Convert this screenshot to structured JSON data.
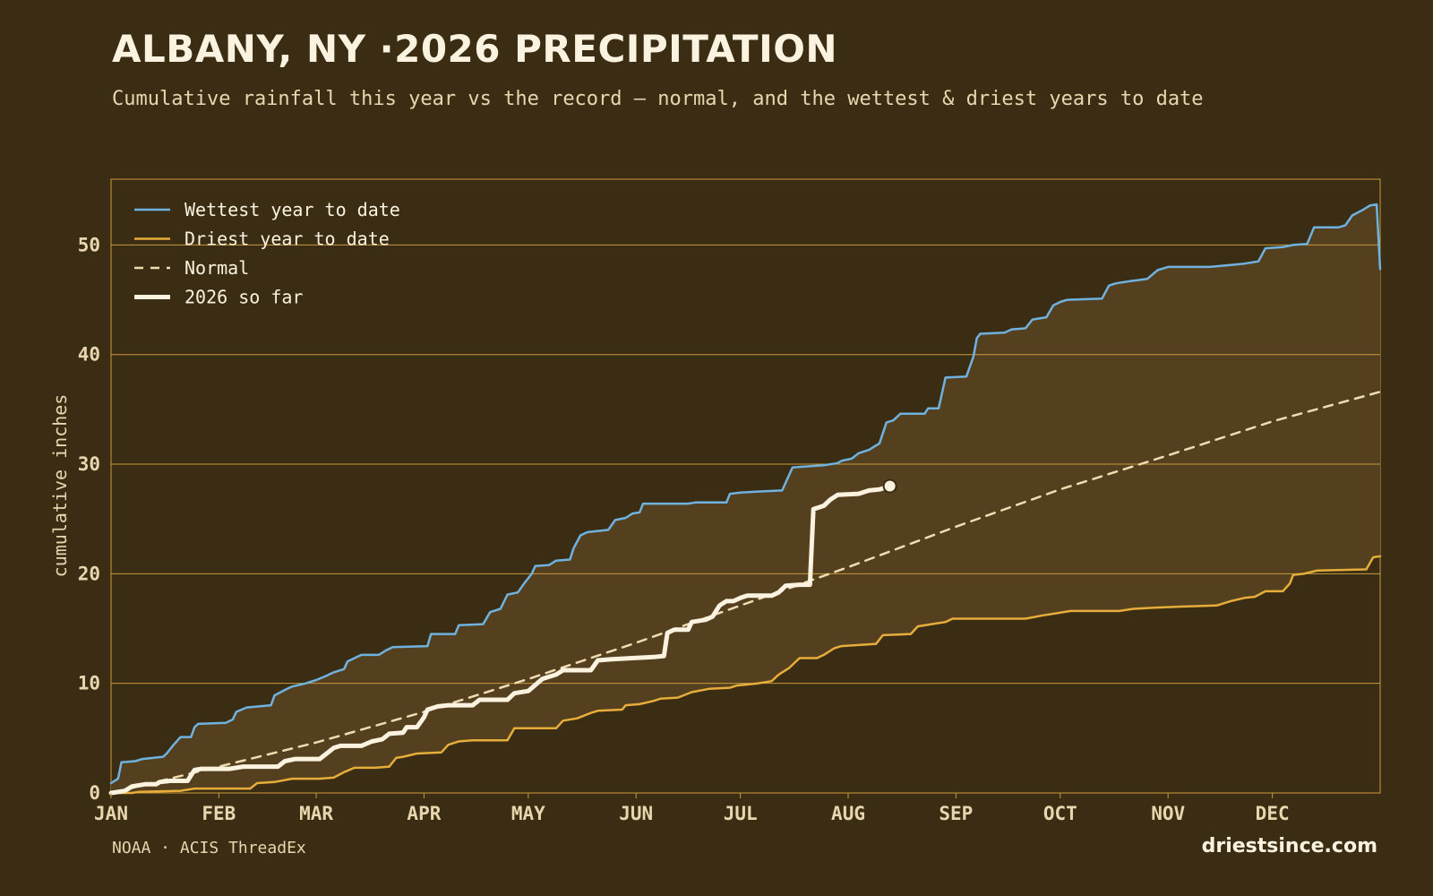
{
  "header": {
    "title": "ALBANY, NY ·2026 PRECIPITATION",
    "subtitle": "Cumulative rainfall this year vs the record — normal, and the wettest & driest years to date"
  },
  "footer": {
    "source": "NOAA · ACIS ThreadEx",
    "brand": "driestsince.com"
  },
  "colors": {
    "background": "#3a2d14",
    "band": "#54401f",
    "grid": "#c99a3a",
    "wettest": "#6fb2e0",
    "driest": "#e6ad3a",
    "normal": "#efdcb2",
    "current": "#fbf3e0"
  },
  "chart_data": {
    "type": "line",
    "ylabel": "cumulative inches",
    "ylim": [
      0,
      56
    ],
    "yticks": [
      0,
      10,
      20,
      30,
      40,
      50
    ],
    "xlim": [
      0,
      365
    ],
    "x_unit": "day of year",
    "month_labels": [
      "JAN",
      "FEB",
      "MAR",
      "APR",
      "MAY",
      "JUN",
      "JUL",
      "AUG",
      "SEP",
      "OCT",
      "NOV",
      "DEC"
    ],
    "month_starts": [
      0,
      31,
      59,
      90,
      120,
      151,
      181,
      212,
      243,
      273,
      304,
      334
    ],
    "grid": true,
    "legend_position": "top-left",
    "band": "shaded region between wettest and driest",
    "series": [
      {
        "name": "Wettest year to date",
        "points": [
          [
            0,
            0.9
          ],
          [
            2,
            1.3
          ],
          [
            3,
            2.8
          ],
          [
            7,
            2.9
          ],
          [
            9,
            3.1
          ],
          [
            15,
            3.3
          ],
          [
            16,
            3.6
          ],
          [
            18,
            4.4
          ],
          [
            20,
            5.1
          ],
          [
            23,
            5.1
          ],
          [
            24,
            6.0
          ],
          [
            25,
            6.3
          ],
          [
            33,
            6.4
          ],
          [
            35,
            6.7
          ],
          [
            36,
            7.4
          ],
          [
            39,
            7.8
          ],
          [
            46,
            8.0
          ],
          [
            47,
            8.9
          ],
          [
            50,
            9.4
          ],
          [
            52,
            9.7
          ],
          [
            56,
            10.0
          ],
          [
            59,
            10.3
          ],
          [
            62,
            10.7
          ],
          [
            64,
            11.0
          ],
          [
            67,
            11.3
          ],
          [
            68,
            12.0
          ],
          [
            70,
            12.3
          ],
          [
            72,
            12.6
          ],
          [
            77,
            12.6
          ],
          [
            79,
            13.0
          ],
          [
            81,
            13.3
          ],
          [
            91,
            13.4
          ],
          [
            92,
            14.5
          ],
          [
            99,
            14.5
          ],
          [
            100,
            15.3
          ],
          [
            107,
            15.4
          ],
          [
            109,
            16.5
          ],
          [
            112,
            16.8
          ],
          [
            114,
            18.1
          ],
          [
            117,
            18.3
          ],
          [
            119,
            19.2
          ],
          [
            121,
            20.0
          ],
          [
            122,
            20.7
          ],
          [
            126,
            20.8
          ],
          [
            128,
            21.2
          ],
          [
            132,
            21.3
          ],
          [
            133,
            22.3
          ],
          [
            135,
            23.5
          ],
          [
            137,
            23.8
          ],
          [
            143,
            24.0
          ],
          [
            145,
            24.9
          ],
          [
            148,
            25.1
          ],
          [
            150,
            25.5
          ],
          [
            152,
            25.6
          ],
          [
            153,
            26.4
          ],
          [
            166,
            26.4
          ],
          [
            168,
            26.5
          ],
          [
            177,
            26.5
          ],
          [
            178,
            27.3
          ],
          [
            181,
            27.4
          ],
          [
            186,
            27.5
          ],
          [
            193,
            27.6
          ],
          [
            196,
            29.7
          ],
          [
            205,
            29.9
          ],
          [
            209,
            30.1
          ],
          [
            210,
            30.3
          ],
          [
            213,
            30.5
          ],
          [
            215,
            31.0
          ],
          [
            218,
            31.3
          ],
          [
            221,
            31.9
          ],
          [
            223,
            33.8
          ],
          [
            225,
            34.0
          ],
          [
            227,
            34.6
          ],
          [
            234,
            34.6
          ],
          [
            235,
            35.1
          ],
          [
            238,
            35.1
          ],
          [
            240,
            37.9
          ],
          [
            246,
            38.0
          ],
          [
            248,
            39.8
          ],
          [
            249,
            41.5
          ],
          [
            250,
            41.9
          ],
          [
            257,
            42.0
          ],
          [
            259,
            42.3
          ],
          [
            263,
            42.4
          ],
          [
            265,
            43.2
          ],
          [
            269,
            43.4
          ],
          [
            271,
            44.5
          ],
          [
            273,
            44.8
          ],
          [
            275,
            45.0
          ],
          [
            285,
            45.1
          ],
          [
            287,
            46.3
          ],
          [
            289,
            46.5
          ],
          [
            293,
            46.7
          ],
          [
            298,
            46.9
          ],
          [
            301,
            47.7
          ],
          [
            304,
            48.0
          ],
          [
            316,
            48.0
          ],
          [
            323,
            48.2
          ],
          [
            326,
            48.3
          ],
          [
            330,
            48.5
          ],
          [
            332,
            49.7
          ],
          [
            337,
            49.8
          ],
          [
            340,
            50.0
          ],
          [
            344,
            50.1
          ],
          [
            346,
            51.6
          ],
          [
            353,
            51.6
          ],
          [
            355,
            51.8
          ],
          [
            357,
            52.7
          ],
          [
            360,
            53.2
          ],
          [
            362,
            53.6
          ],
          [
            364,
            53.7
          ],
          [
            365,
            47.8
          ]
        ]
      },
      {
        "name": "Driest year to date",
        "points": [
          [
            0,
            0.0
          ],
          [
            6,
            0.0
          ],
          [
            8,
            0.1
          ],
          [
            20,
            0.2
          ],
          [
            24,
            0.4
          ],
          [
            40,
            0.4
          ],
          [
            42,
            0.9
          ],
          [
            47,
            1.0
          ],
          [
            52,
            1.3
          ],
          [
            60,
            1.3
          ],
          [
            64,
            1.4
          ],
          [
            67,
            1.9
          ],
          [
            70,
            2.3
          ],
          [
            76,
            2.3
          ],
          [
            80,
            2.4
          ],
          [
            82,
            3.2
          ],
          [
            84,
            3.3
          ],
          [
            88,
            3.6
          ],
          [
            95,
            3.7
          ],
          [
            97,
            4.4
          ],
          [
            100,
            4.7
          ],
          [
            104,
            4.8
          ],
          [
            114,
            4.8
          ],
          [
            116,
            5.9
          ],
          [
            128,
            5.9
          ],
          [
            130,
            6.6
          ],
          [
            134,
            6.8
          ],
          [
            138,
            7.3
          ],
          [
            140,
            7.5
          ],
          [
            147,
            7.6
          ],
          [
            148,
            8.0
          ],
          [
            152,
            8.1
          ],
          [
            156,
            8.4
          ],
          [
            158,
            8.6
          ],
          [
            163,
            8.7
          ],
          [
            167,
            9.2
          ],
          [
            172,
            9.5
          ],
          [
            178,
            9.6
          ],
          [
            180,
            9.8
          ],
          [
            186,
            10.0
          ],
          [
            190,
            10.2
          ],
          [
            192,
            10.8
          ],
          [
            195,
            11.4
          ],
          [
            198,
            12.3
          ],
          [
            203,
            12.3
          ],
          [
            205,
            12.6
          ],
          [
            208,
            13.2
          ],
          [
            210,
            13.4
          ],
          [
            220,
            13.6
          ],
          [
            222,
            14.4
          ],
          [
            230,
            14.5
          ],
          [
            232,
            15.2
          ],
          [
            236,
            15.4
          ],
          [
            240,
            15.6
          ],
          [
            242,
            15.9
          ],
          [
            263,
            15.9
          ],
          [
            268,
            16.2
          ],
          [
            272,
            16.4
          ],
          [
            276,
            16.6
          ],
          [
            290,
            16.6
          ],
          [
            294,
            16.8
          ],
          [
            300,
            16.9
          ],
          [
            307,
            17.0
          ],
          [
            318,
            17.1
          ],
          [
            322,
            17.5
          ],
          [
            326,
            17.8
          ],
          [
            329,
            17.9
          ],
          [
            332,
            18.4
          ],
          [
            337,
            18.4
          ],
          [
            339,
            19.1
          ],
          [
            340,
            19.9
          ],
          [
            343,
            20.0
          ],
          [
            347,
            20.3
          ],
          [
            361,
            20.4
          ],
          [
            363,
            21.5
          ],
          [
            365,
            21.6
          ]
        ]
      },
      {
        "name": "Normal",
        "points": [
          [
            0,
            0.0
          ],
          [
            31,
            2.4
          ],
          [
            59,
            4.6
          ],
          [
            90,
            7.4
          ],
          [
            120,
            10.4
          ],
          [
            151,
            13.7
          ],
          [
            181,
            17.1
          ],
          [
            212,
            20.6
          ],
          [
            243,
            24.3
          ],
          [
            273,
            27.7
          ],
          [
            304,
            30.8
          ],
          [
            334,
            33.9
          ],
          [
            365,
            36.6
          ]
        ]
      },
      {
        "name": "2026 so far",
        "points": [
          [
            0,
            0.0
          ],
          [
            4,
            0.2
          ],
          [
            6,
            0.6
          ],
          [
            10,
            0.8
          ],
          [
            13,
            0.8
          ],
          [
            14,
            1.0
          ],
          [
            17,
            1.1
          ],
          [
            22,
            1.1
          ],
          [
            24,
            2.1
          ],
          [
            26,
            2.2
          ],
          [
            34,
            2.2
          ],
          [
            38,
            2.4
          ],
          [
            42,
            2.4
          ],
          [
            48,
            2.4
          ],
          [
            50,
            2.9
          ],
          [
            53,
            3.1
          ],
          [
            60,
            3.1
          ],
          [
            62,
            3.6
          ],
          [
            64,
            4.1
          ],
          [
            66,
            4.3
          ],
          [
            72,
            4.3
          ],
          [
            75,
            4.7
          ],
          [
            78,
            4.9
          ],
          [
            80,
            5.4
          ],
          [
            84,
            5.5
          ],
          [
            85,
            6.0
          ],
          [
            88,
            6.0
          ],
          [
            90,
            6.9
          ],
          [
            91,
            7.6
          ],
          [
            94,
            7.9
          ],
          [
            97,
            8.0
          ],
          [
            104,
            8.0
          ],
          [
            106,
            8.5
          ],
          [
            114,
            8.5
          ],
          [
            116,
            9.1
          ],
          [
            120,
            9.3
          ],
          [
            124,
            10.4
          ],
          [
            126,
            10.6
          ],
          [
            128,
            10.8
          ],
          [
            130,
            11.2
          ],
          [
            138,
            11.2
          ],
          [
            140,
            12.1
          ],
          [
            144,
            12.2
          ],
          [
            156,
            12.4
          ],
          [
            159,
            12.5
          ],
          [
            160,
            14.6
          ],
          [
            162,
            14.9
          ],
          [
            166,
            14.9
          ],
          [
            167,
            15.6
          ],
          [
            171,
            15.8
          ],
          [
            173,
            16.1
          ],
          [
            175,
            17.1
          ],
          [
            177,
            17.5
          ],
          [
            179,
            17.5
          ],
          [
            181,
            17.8
          ],
          [
            183,
            18.0
          ],
          [
            190,
            18.0
          ],
          [
            192,
            18.3
          ],
          [
            194,
            18.9
          ],
          [
            198,
            19.0
          ],
          [
            201,
            19.0
          ],
          [
            202,
            25.9
          ],
          [
            205,
            26.2
          ],
          [
            207,
            26.8
          ],
          [
            209,
            27.2
          ],
          [
            215,
            27.3
          ],
          [
            218,
            27.6
          ],
          [
            221,
            27.7
          ],
          [
            223,
            27.9
          ],
          [
            224,
            28.0
          ]
        ]
      }
    ]
  }
}
